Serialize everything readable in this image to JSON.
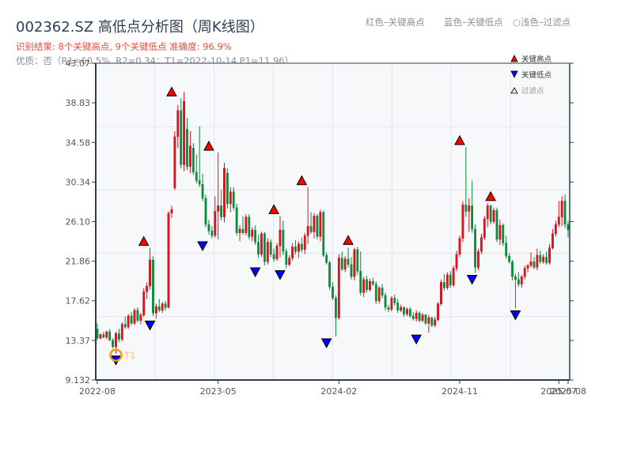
{
  "header": {
    "title": "002362.SZ 高低点分析图（周K线图）",
    "result_line": "识别结果: 8个关键高点, 9个关键低点  准确度: 96.9%",
    "quality_line": "优质：否（R1=60.5%, R2=0.34；T1=2022-10-14 P1=11.96）",
    "legend_red": "红色–关键高点",
    "legend_blue": "蓝色–关键低点",
    "legend_light": "○浅色–过滤点"
  },
  "legend": {
    "items": [
      {
        "label": "关键高点",
        "marker": "triangle-up",
        "color": "#ff0000"
      },
      {
        "label": "关键低点",
        "marker": "triangle-down",
        "color": "#0000ff"
      },
      {
        "label": "过滤点",
        "marker": "triangle-up-hollow",
        "color": "#ffcccc"
      }
    ]
  },
  "colors": {
    "up": "#e0141c",
    "down": "#0a8a3a",
    "high_marker": "#ff0000",
    "low_marker": "#0000ff",
    "t1_ring": "#f39c12",
    "grid": "#e1e4ea",
    "plot_bg": "#f7f8fa",
    "axis": "#2c3e50"
  },
  "chart_data": {
    "type": "candlestick",
    "title": "002362.SZ 高低点分析图（周K线图）",
    "xlabel": "",
    "ylabel": "",
    "ylim": [
      9.132,
      43.07
    ],
    "yticks": [
      9.132,
      13.37,
      17.62,
      21.86,
      26.1,
      30.34,
      34.58,
      38.83,
      43.07
    ],
    "ytick_labels": [
      "9.132",
      "13.37",
      "17.62",
      "21.86",
      "26.10",
      "30.34",
      "34.58",
      "38.83",
      "43.07"
    ],
    "xticks": [
      {
        "label": "2022-08",
        "week": 0
      },
      {
        "label": "2023-05",
        "week": 39
      },
      {
        "label": "2024-02",
        "week": 78
      },
      {
        "label": "2024-11",
        "week": 117
      },
      {
        "label": "2025-07",
        "week": 149
      },
      {
        "label": "2025-08",
        "week": 152
      }
    ],
    "n_weeks": 153,
    "grid": true,
    "candles_ohlc": [
      [
        14.6,
        15.2,
        13.4,
        13.6
      ],
      [
        13.6,
        14.1,
        13.5,
        14.0
      ],
      [
        14.0,
        14.3,
        13.6,
        13.7
      ],
      [
        13.7,
        14.4,
        13.5,
        14.3
      ],
      [
        14.3,
        14.6,
        13.3,
        13.4
      ],
      [
        13.4,
        13.6,
        12.5,
        12.7
      ],
      [
        12.7,
        14.3,
        11.96,
        14.1
      ],
      [
        14.1,
        14.6,
        13.2,
        13.5
      ],
      [
        13.5,
        15.3,
        13.3,
        15.1
      ],
      [
        15.1,
        15.9,
        14.6,
        14.8
      ],
      [
        14.8,
        16.2,
        14.6,
        16.0
      ],
      [
        16.0,
        16.4,
        15.0,
        15.2
      ],
      [
        15.2,
        16.8,
        15.0,
        16.6
      ],
      [
        16.6,
        16.9,
        15.3,
        15.5
      ],
      [
        15.5,
        16.3,
        15.1,
        16.1
      ],
      [
        16.1,
        19.0,
        15.9,
        18.6
      ],
      [
        18.6,
        19.6,
        17.8,
        19.2
      ],
      [
        19.2,
        23.3,
        18.8,
        22.0
      ],
      [
        22.0,
        22.4,
        16.0,
        16.3
      ],
      [
        16.3,
        17.3,
        15.7,
        17.0
      ],
      [
        17.0,
        17.8,
        16.4,
        16.6
      ],
      [
        16.6,
        17.5,
        16.3,
        17.3
      ],
      [
        17.3,
        17.6,
        16.6,
        16.9
      ],
      [
        16.9,
        27.2,
        16.8,
        27.0
      ],
      [
        27.0,
        27.8,
        26.5,
        27.4
      ],
      [
        29.7,
        35.8,
        29.5,
        35.2
      ],
      [
        35.2,
        38.6,
        34.0,
        38.0
      ],
      [
        38.0,
        39.3,
        31.8,
        32.2
      ],
      [
        32.2,
        40.0,
        31.5,
        39.0
      ],
      [
        36.0,
        37.2,
        31.6,
        32.0
      ],
      [
        32.0,
        35.8,
        31.3,
        34.2
      ],
      [
        34.0,
        34.5,
        31.1,
        31.4
      ],
      [
        31.4,
        33.3,
        30.2,
        30.5
      ],
      [
        30.5,
        36.3,
        29.8,
        30.1
      ],
      [
        30.1,
        31.2,
        28.3,
        28.6
      ],
      [
        28.6,
        29.0,
        25.5,
        25.8
      ],
      [
        25.8,
        26.3,
        24.7,
        25.1
      ],
      [
        25.1,
        25.6,
        24.3,
        24.6
      ],
      [
        24.6,
        28.8,
        24.4,
        27.2
      ],
      [
        27.2,
        33.5,
        24.2,
        27.8
      ],
      [
        27.8,
        29.5,
        26.2,
        26.6
      ],
      [
        26.6,
        32.4,
        26.0,
        31.8
      ],
      [
        31.3,
        31.8,
        27.5,
        28.0
      ],
      [
        28.0,
        29.8,
        27.1,
        29.3
      ],
      [
        29.3,
        29.8,
        27.3,
        27.6
      ],
      [
        27.6,
        28.0,
        24.6,
        24.9
      ],
      [
        24.9,
        25.7,
        24.0,
        25.3
      ],
      [
        25.3,
        26.7,
        24.7,
        24.9
      ],
      [
        24.9,
        26.9,
        24.6,
        26.6
      ],
      [
        26.6,
        26.9,
        24.2,
        24.5
      ],
      [
        24.5,
        25.5,
        24.0,
        25.2
      ],
      [
        25.2,
        25.7,
        23.6,
        23.9
      ],
      [
        23.9,
        24.7,
        22.2,
        22.6
      ],
      [
        22.6,
        25.0,
        22.3,
        24.8
      ],
      [
        24.8,
        25.0,
        21.4,
        21.8
      ],
      [
        21.8,
        24.3,
        21.5,
        23.9
      ],
      [
        23.9,
        24.2,
        22.3,
        22.6
      ],
      [
        22.6,
        23.2,
        21.8,
        22.1
      ],
      [
        22.1,
        23.8,
        21.9,
        23.5
      ],
      [
        23.5,
        26.7,
        22.3,
        25.2
      ],
      [
        25.2,
        26.2,
        22.5,
        22.9
      ],
      [
        22.9,
        23.2,
        21.1,
        21.5
      ],
      [
        21.5,
        22.5,
        21.3,
        22.2
      ],
      [
        22.2,
        23.8,
        21.9,
        23.4
      ],
      [
        23.4,
        24.1,
        22.6,
        22.9
      ],
      [
        22.9,
        24.0,
        22.2,
        23.7
      ],
      [
        23.7,
        24.4,
        22.8,
        23.1
      ],
      [
        23.1,
        24.9,
        22.6,
        24.6
      ],
      [
        24.6,
        29.8,
        23.7,
        25.6
      ],
      [
        25.6,
        27.1,
        24.8,
        25.0
      ],
      [
        25.0,
        27.0,
        24.3,
        26.7
      ],
      [
        26.7,
        26.9,
        24.2,
        24.5
      ],
      [
        24.5,
        27.4,
        24.0,
        27.1
      ],
      [
        27.1,
        27.3,
        22.3,
        22.5
      ],
      [
        22.5,
        22.8,
        21.5,
        21.7
      ],
      [
        21.7,
        21.9,
        18.8,
        19.1
      ],
      [
        19.1,
        19.6,
        17.7,
        17.9
      ],
      [
        17.9,
        18.2,
        13.8,
        15.8
      ],
      [
        15.8,
        22.6,
        15.6,
        22.2
      ],
      [
        22.2,
        22.9,
        20.8,
        21.0
      ],
      [
        21.0,
        22.4,
        20.7,
        22.1
      ],
      [
        22.1,
        23.3,
        21.2,
        21.5
      ],
      [
        21.5,
        22.3,
        19.9,
        20.2
      ],
      [
        20.2,
        23.3,
        19.8,
        23.1
      ],
      [
        23.1,
        23.4,
        20.4,
        20.8
      ],
      [
        20.8,
        22.9,
        18.2,
        18.5
      ],
      [
        18.5,
        20.2,
        18.0,
        19.9
      ],
      [
        19.9,
        20.3,
        18.5,
        18.8
      ],
      [
        18.8,
        20.0,
        18.6,
        19.7
      ],
      [
        19.7,
        20.1,
        19.2,
        19.4
      ],
      [
        19.4,
        19.7,
        17.3,
        17.6
      ],
      [
        17.6,
        19.2,
        17.3,
        19.0
      ],
      [
        19.0,
        19.4,
        17.9,
        18.2
      ],
      [
        18.2,
        18.5,
        16.6,
        16.9
      ],
      [
        16.9,
        17.2,
        16.4,
        16.7
      ],
      [
        16.7,
        18.1,
        16.5,
        17.9
      ],
      [
        17.9,
        18.3,
        17.1,
        17.4
      ],
      [
        17.4,
        17.8,
        16.3,
        16.6
      ],
      [
        16.6,
        17.2,
        16.4,
        16.9
      ],
      [
        16.9,
        17.0,
        15.9,
        16.2
      ],
      [
        16.2,
        16.9,
        16.0,
        16.7
      ],
      [
        16.7,
        16.9,
        15.8,
        16.0
      ],
      [
        16.0,
        16.4,
        15.5,
        15.7
      ],
      [
        15.7,
        16.6,
        15.4,
        16.3
      ],
      [
        16.3,
        16.5,
        15.3,
        15.5
      ],
      [
        15.5,
        16.3,
        15.3,
        16.1
      ],
      [
        16.1,
        16.2,
        15.0,
        15.2
      ],
      [
        15.2,
        16.1,
        14.2,
        15.8
      ],
      [
        15.8,
        15.9,
        14.8,
        15.0
      ],
      [
        15.0,
        15.9,
        14.8,
        15.6
      ],
      [
        15.6,
        17.5,
        15.4,
        17.3
      ],
      [
        17.3,
        19.9,
        17.1,
        19.6
      ],
      [
        19.6,
        20.5,
        18.7,
        19.0
      ],
      [
        19.0,
        20.7,
        18.8,
        20.4
      ],
      [
        20.4,
        20.8,
        19.0,
        19.3
      ],
      [
        19.3,
        21.4,
        19.1,
        21.1
      ],
      [
        21.1,
        23.0,
        20.8,
        22.6
      ],
      [
        22.6,
        24.6,
        22.3,
        24.3
      ],
      [
        24.3,
        28.3,
        23.9,
        27.9
      ],
      [
        27.9,
        34.1,
        26.6,
        27.2
      ],
      [
        27.2,
        28.6,
        25.0,
        27.8
      ],
      [
        27.8,
        30.5,
        24.9,
        25.3
      ],
      [
        25.3,
        25.8,
        20.6,
        21.2
      ],
      [
        21.2,
        23.2,
        20.9,
        22.9
      ],
      [
        22.9,
        24.8,
        22.6,
        24.4
      ],
      [
        24.4,
        26.7,
        24.1,
        26.4
      ],
      [
        26.4,
        28.1,
        25.5,
        27.8
      ],
      [
        27.8,
        27.9,
        25.8,
        26.1
      ],
      [
        26.1,
        27.6,
        25.9,
        27.3
      ],
      [
        27.3,
        27.6,
        23.9,
        24.2
      ],
      [
        24.2,
        26.3,
        23.6,
        25.7
      ],
      [
        25.7,
        25.9,
        23.5,
        23.8
      ],
      [
        23.8,
        24.6,
        22.1,
        22.4
      ],
      [
        22.4,
        22.7,
        21.6,
        21.8
      ],
      [
        21.8,
        22.0,
        19.8,
        20.2
      ],
      [
        20.2,
        20.5,
        16.8,
        19.9
      ],
      [
        19.9,
        20.7,
        19.1,
        19.4
      ],
      [
        19.4,
        20.4,
        19.0,
        20.2
      ],
      [
        20.2,
        21.4,
        19.9,
        21.1
      ],
      [
        21.1,
        21.6,
        20.7,
        21.4
      ],
      [
        21.4,
        22.8,
        21.2,
        21.8
      ],
      [
        21.8,
        22.3,
        21.0,
        21.2
      ],
      [
        21.2,
        23.2,
        20.9,
        22.5
      ],
      [
        22.5,
        23.0,
        21.6,
        21.8
      ],
      [
        21.8,
        22.6,
        21.6,
        22.3
      ],
      [
        22.3,
        22.9,
        21.5,
        21.7
      ],
      [
        21.7,
        23.7,
        21.5,
        23.3
      ],
      [
        23.3,
        25.3,
        23.1,
        24.8
      ],
      [
        24.8,
        26.2,
        24.5,
        25.8
      ],
      [
        25.8,
        28.3,
        25.5,
        26.6
      ],
      [
        26.6,
        28.8,
        25.6,
        28.3
      ],
      [
        28.3,
        29.0,
        25.4,
        25.8
      ],
      [
        25.8,
        26.2,
        24.4,
        25.2
      ]
    ],
    "key_highs": [
      {
        "week": 15,
        "price": 23.3
      },
      {
        "week": 24,
        "price": 39.3
      },
      {
        "week": 36,
        "price": 33.5
      },
      {
        "week": 57,
        "price": 26.7
      },
      {
        "week": 66,
        "price": 29.8
      },
      {
        "week": 81,
        "price": 23.4
      },
      {
        "week": 117,
        "price": 34.1
      },
      {
        "week": 127,
        "price": 28.1
      }
    ],
    "key_lows": [
      {
        "week": 6,
        "price": 11.96
      },
      {
        "week": 17,
        "price": 15.7
      },
      {
        "week": 34,
        "price": 24.2
      },
      {
        "week": 51,
        "price": 21.4
      },
      {
        "week": 59,
        "price": 21.1
      },
      {
        "week": 74,
        "price": 13.8
      },
      {
        "week": 103,
        "price": 14.2
      },
      {
        "week": 121,
        "price": 20.6
      },
      {
        "week": 135,
        "price": 16.8
      }
    ],
    "annotations": [
      {
        "text": "T1",
        "week": 6,
        "price": 11.96,
        "date": "2022-10-14"
      }
    ],
    "legend_position": "upper right"
  }
}
